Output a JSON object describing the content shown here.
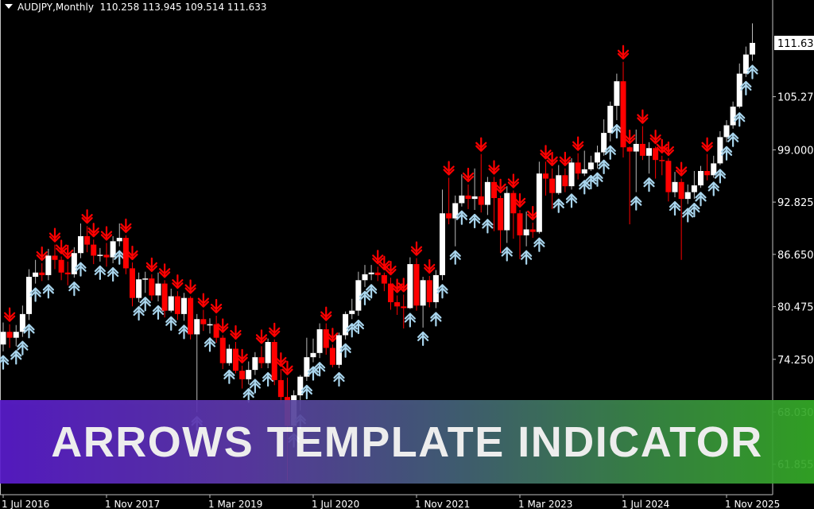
{
  "header": {
    "symbol_timeframe": "AUDJPY,Monthly",
    "ohlc_text": "110.258 113.945 109.514 111.633"
  },
  "banner": {
    "text": "ARROWS TEMPLATE INDICATOR"
  },
  "colors": {
    "background": "#000000",
    "bull_candle": "#ffffff",
    "bear_candle": "#ff0000",
    "up_arrow": "#a8d4ec",
    "down_arrow": "#ff0000",
    "axis": "#c0c0c0",
    "banner_start": "#5a1ccc",
    "banner_end": "#34aa26"
  },
  "chart_data": {
    "type": "candlestick",
    "title": "AUDJPY,Monthly",
    "first_period": "2016-07",
    "last_period": "2026-03",
    "ylim": [
      59.2,
      116.7
    ],
    "grid": false,
    "current_price": "111.63",
    "y_ticks": [
      "105.275",
      "99.000",
      "92.825",
      "86.650",
      "80.475",
      "74.250",
      "68.030",
      "61.855"
    ],
    "x_ticks": [
      {
        "label": "1 Jul 2016",
        "index": 0
      },
      {
        "label": "1 Nov 2017",
        "index": 16
      },
      {
        "label": "1 Mar 2019",
        "index": 32
      },
      {
        "label": "1 Jul 2020",
        "index": 48
      },
      {
        "label": "1 Nov 2021",
        "index": 64
      },
      {
        "label": "1 Mar 2023",
        "index": 80
      },
      {
        "label": "1 Jul 2024",
        "index": 96
      },
      {
        "label": "1 Nov 2025",
        "index": 112
      }
    ],
    "signals": "down arrow above bearish candles, up arrow below bullish candles",
    "open": [
      76.0,
      77.5,
      76.8,
      77.5,
      79.6,
      84.0,
      84.5,
      84.2,
      86.5,
      86.0,
      84.5,
      84.3,
      86.8,
      88.8,
      87.8,
      86.5,
      86.6,
      86.3,
      88.2,
      88.6,
      85.0,
      81.5,
      83.7,
      83.8,
      81.8,
      83.2,
      80.0,
      81.7,
      79.6,
      81.5,
      77.2,
      79.0,
      78.4,
      78.4,
      76.8,
      73.8,
      75.5,
      72.9,
      71.9,
      73.0,
      74.5,
      73.8,
      76.3,
      71.8,
      69.8,
      66.4,
      70.0,
      72.2,
      74.5,
      75.0,
      77.8,
      75.6,
      73.6,
      77.1,
      79.6,
      80.0,
      83.6,
      84.3,
      84.5,
      84.2,
      83.2,
      81.0,
      80.5,
      80.3,
      85.5,
      80.6,
      83.6,
      81.0,
      84.2,
      91.5,
      90.9,
      92.7,
      93.6,
      93.2,
      93.5,
      92.5,
      95.2,
      93.3,
      89.5,
      93.9,
      91.5,
      88.9,
      89.6,
      89.3,
      96.2,
      95.6,
      93.9,
      96.0,
      94.7,
      97.5,
      96.2,
      96.7,
      97.5,
      98.7,
      101.0,
      104.2,
      107.1,
      99.3,
      98.8,
      99.7,
      98.3,
      99.2,
      97.8,
      97.7,
      94.0,
      95.2,
      93.2,
      94.0,
      94.8,
      96.5,
      96.0,
      97.4,
      100.5,
      101.9,
      104.1,
      108.0,
      110.258
    ],
    "high": [
      78.6,
      78.4,
      78.3,
      80.6,
      84.9,
      86.0,
      85.6,
      87.3,
      87.8,
      86.4,
      85.8,
      87.5,
      90.3,
      90.0,
      88.4,
      87.4,
      88.0,
      88.8,
      90.3,
      88.9,
      85.7,
      84.5,
      84.6,
      84.3,
      84.5,
      83.6,
      82.6,
      82.3,
      82.1,
      81.7,
      79.6,
      80.1,
      79.1,
      79.4,
      77.1,
      76.0,
      76.3,
      73.5,
      74.0,
      75.1,
      75.8,
      76.7,
      76.6,
      73.1,
      72.1,
      70.6,
      72.4,
      76.8,
      76.7,
      78.5,
      78.5,
      76.0,
      77.4,
      79.9,
      81.4,
      84.6,
      85.4,
      85.4,
      85.2,
      84.5,
      83.9,
      81.8,
      81.9,
      86.3,
      86.2,
      84.0,
      84.1,
      84.8,
      94.3,
      95.7,
      93.6,
      96.1,
      94.9,
      96.8,
      98.5,
      95.8,
      95.8,
      93.6,
      94.7,
      94.2,
      91.9,
      91.7,
      90.4,
      97.6,
      97.6,
      96.8,
      97.2,
      96.8,
      98.0,
      98.6,
      98.9,
      98.3,
      99.5,
      102.6,
      104.7,
      108.0,
      109.4,
      99.4,
      101.4,
      101.8,
      99.9,
      99.4,
      98.3,
      98.0,
      96.4,
      95.6,
      94.9,
      96.5,
      97.1,
      98.5,
      98.3,
      101.2,
      102.5,
      104.7,
      109.2,
      111.2,
      113.945
    ],
    "low": [
      75.2,
      75.6,
      75.8,
      76.9,
      78.9,
      83.2,
      83.5,
      83.6,
      84.9,
      83.6,
      83.0,
      83.9,
      86.2,
      86.9,
      85.5,
      85.8,
      85.2,
      85.6,
      87.6,
      84.3,
      80.5,
      81.0,
      82.1,
      81.2,
      81.1,
      79.2,
      79.8,
      78.9,
      78.8,
      76.6,
      68.0,
      77.6,
      77.3,
      76.2,
      73.1,
      73.5,
      72.6,
      70.8,
      71.3,
      72.4,
      73.2,
      73.2,
      71.2,
      69.1,
      59.9,
      66.0,
      68.2,
      71.7,
      73.9,
      74.4,
      74.8,
      73.3,
      73.2,
      76.6,
      79.0,
      79.4,
      82.8,
      83.6,
      83.5,
      82.3,
      80.1,
      79.5,
      77.9,
      80.2,
      80.0,
      78.0,
      80.4,
      80.3,
      83.6,
      90.2,
      87.6,
      92.3,
      92.0,
      91.9,
      91.6,
      91.3,
      89.4,
      86.8,
      88.0,
      88.5,
      86.1,
      87.6,
      88.6,
      89.1,
      93.6,
      92.0,
      93.7,
      94.0,
      94.3,
      95.5,
      95.9,
      96.5,
      96.8,
      98.3,
      100.0,
      102.5,
      98.1,
      90.2,
      94.0,
      97.8,
      96.2,
      95.6,
      96.0,
      92.9,
      93.4,
      86.0,
      92.6,
      93.2,
      94.5,
      95.4,
      95.7,
      97.2,
      99.9,
      101.5,
      103.9,
      107.6,
      109.514
    ],
    "close": [
      77.5,
      76.8,
      77.5,
      79.6,
      84.0,
      84.5,
      84.2,
      86.5,
      86.0,
      84.5,
      84.3,
      86.8,
      88.8,
      87.8,
      86.5,
      86.6,
      86.3,
      88.2,
      88.6,
      85.0,
      81.5,
      83.7,
      83.8,
      81.8,
      83.2,
      80.0,
      81.7,
      79.6,
      81.5,
      77.2,
      79.0,
      78.4,
      78.4,
      76.8,
      73.8,
      75.5,
      72.9,
      71.9,
      73.0,
      74.5,
      73.8,
      76.3,
      71.8,
      69.8,
      66.4,
      70.0,
      72.2,
      74.5,
      75.0,
      77.8,
      75.6,
      73.6,
      77.1,
      79.6,
      80.0,
      83.6,
      84.3,
      84.5,
      84.2,
      83.2,
      81.0,
      80.5,
      80.3,
      85.5,
      80.6,
      83.6,
      81.0,
      84.2,
      91.5,
      90.9,
      92.7,
      93.6,
      93.2,
      93.5,
      92.5,
      95.2,
      93.3,
      89.5,
      93.9,
      91.5,
      88.9,
      89.6,
      89.3,
      96.2,
      95.6,
      93.9,
      96.0,
      94.7,
      97.5,
      96.2,
      96.7,
      97.5,
      98.7,
      101.0,
      104.2,
      107.1,
      99.3,
      98.8,
      99.7,
      98.3,
      99.2,
      97.8,
      97.7,
      94.0,
      95.2,
      93.2,
      94.0,
      94.8,
      96.5,
      96.0,
      97.4,
      100.5,
      101.9,
      104.1,
      108.0,
      110.258,
      111.633
    ]
  }
}
